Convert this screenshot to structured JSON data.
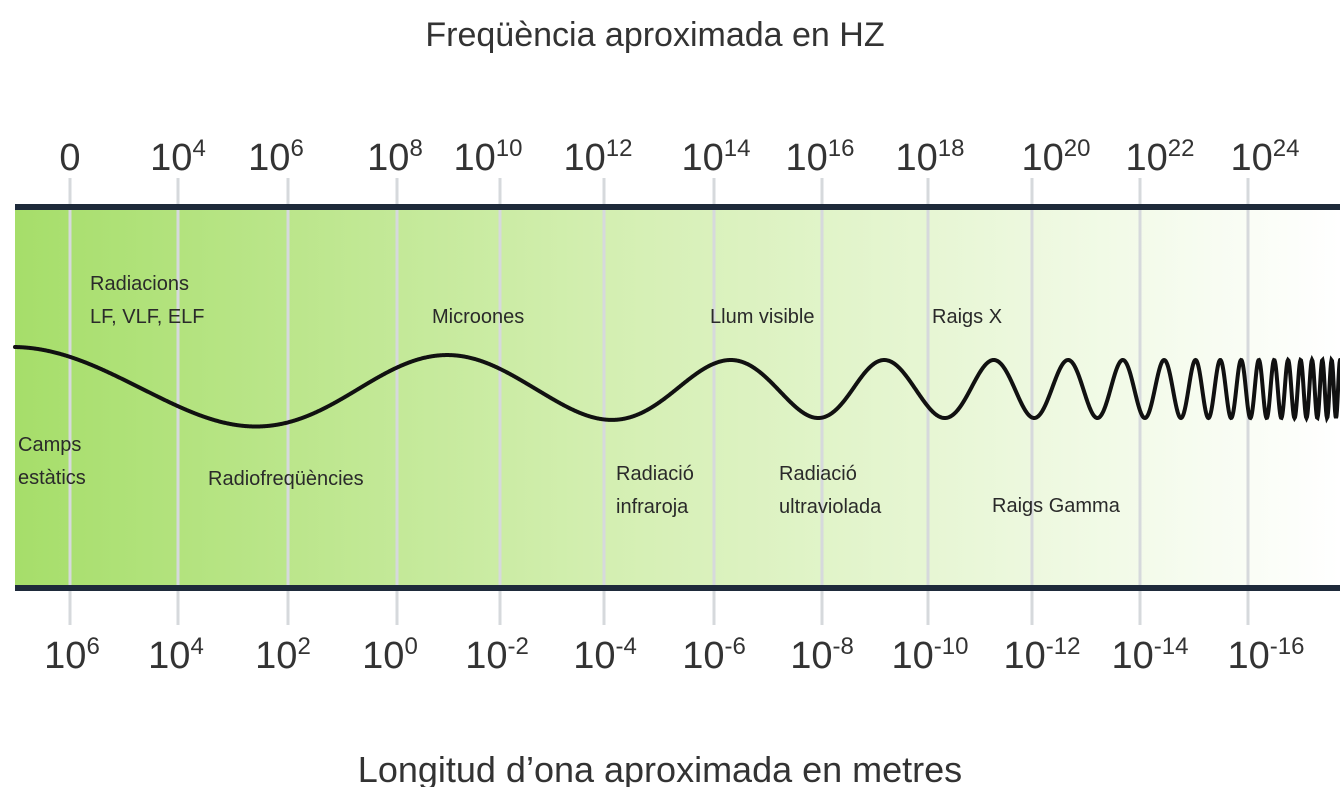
{
  "title": "Freqüència aproximada en HZ",
  "bottom_title": "Longitud d’ona aproximada en metres",
  "frequency_labels": [
    {
      "base": "0"
    },
    {
      "base": "10",
      "exp": "4"
    },
    {
      "base": "10",
      "exp": "6"
    },
    {
      "base": "10",
      "exp": "8"
    },
    {
      "base": "10",
      "exp": "10"
    },
    {
      "base": "10",
      "exp": "12"
    },
    {
      "base": "10",
      "exp": "14"
    },
    {
      "base": "10",
      "exp": "16"
    },
    {
      "base": "10",
      "exp": "18"
    },
    {
      "base": "10",
      "exp": "20"
    },
    {
      "base": "10",
      "exp": "22"
    },
    {
      "base": "10",
      "exp": "24"
    }
  ],
  "wavelength_labels": [
    {
      "base": "10",
      "exp": "6"
    },
    {
      "base": "10",
      "exp": "4"
    },
    {
      "base": "10",
      "exp": "2"
    },
    {
      "base": "10",
      "exp": "0"
    },
    {
      "base": "10",
      "exp": "-2"
    },
    {
      "base": "10",
      "exp": "-4"
    },
    {
      "base": "10",
      "exp": "-6"
    },
    {
      "base": "10",
      "exp": "-8"
    },
    {
      "base": "10",
      "exp": "-10"
    },
    {
      "base": "10",
      "exp": "-12"
    },
    {
      "base": "10",
      "exp": "-14"
    },
    {
      "base": "10",
      "exp": "-16"
    }
  ],
  "regions": [
    {
      "lines": [
        "Radiacions",
        "LF, VLF, ELF"
      ]
    },
    {
      "lines": [
        "Microones"
      ]
    },
    {
      "lines": [
        "Llum visible"
      ]
    },
    {
      "lines": [
        "Raigs X"
      ]
    },
    {
      "lines": [
        "Camps",
        "estàtics"
      ]
    },
    {
      "lines": [
        "Radiofreqüències"
      ]
    },
    {
      "lines": [
        "Radiació",
        "infraroja"
      ]
    },
    {
      "lines": [
        "Radiació",
        "ultraviolada"
      ]
    },
    {
      "lines": [
        "Raigs Gamma"
      ]
    }
  ]
}
